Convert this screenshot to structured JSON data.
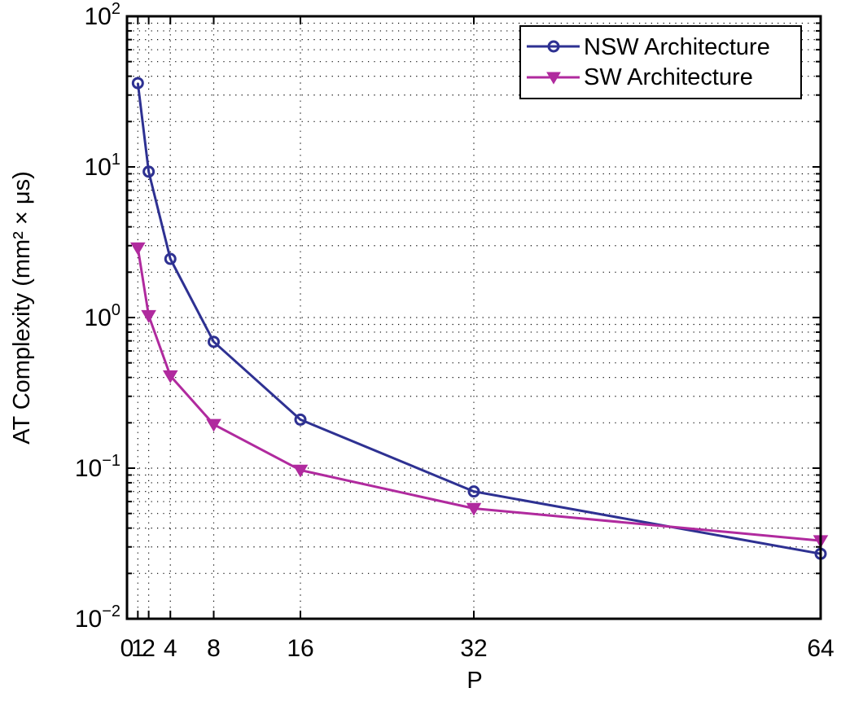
{
  "chart_data": {
    "type": "line",
    "title": "",
    "xlabel": "P",
    "ylabel": "AT Complexity (mm² × μs)",
    "xscale": "linear",
    "yscale": "log",
    "xlim": [
      0,
      64
    ],
    "ylim": [
      0.01,
      100
    ],
    "grid": true,
    "legend_position": "upper right",
    "x_ticks": [
      0,
      1,
      2,
      4,
      8,
      16,
      32,
      64
    ],
    "x_tick_labels": [
      "0",
      "1",
      "2",
      "4",
      "8",
      "16",
      "32",
      "64"
    ],
    "y_ticks": [
      0.01,
      0.1,
      1,
      10,
      100
    ],
    "y_tick_labels": [
      {
        "base": "10",
        "exp": "−2"
      },
      {
        "base": "10",
        "exp": "−1"
      },
      {
        "base": "10",
        "exp": "0"
      },
      {
        "base": "10",
        "exp": "1"
      },
      {
        "base": "10",
        "exp": "2"
      }
    ],
    "x": [
      1,
      2,
      4,
      8,
      16,
      32,
      64
    ],
    "series": [
      {
        "name": "NSW Architecture",
        "color": "#2e3192",
        "marker": "circle",
        "values": [
          36,
          9.3,
          2.45,
          0.69,
          0.21,
          0.07,
          0.027
        ]
      },
      {
        "name": "SW Architecture",
        "color": "#b02a9e",
        "marker": "triangle-down",
        "values": [
          2.9,
          1.03,
          0.41,
          0.195,
          0.097,
          0.054,
          0.033
        ]
      }
    ]
  }
}
